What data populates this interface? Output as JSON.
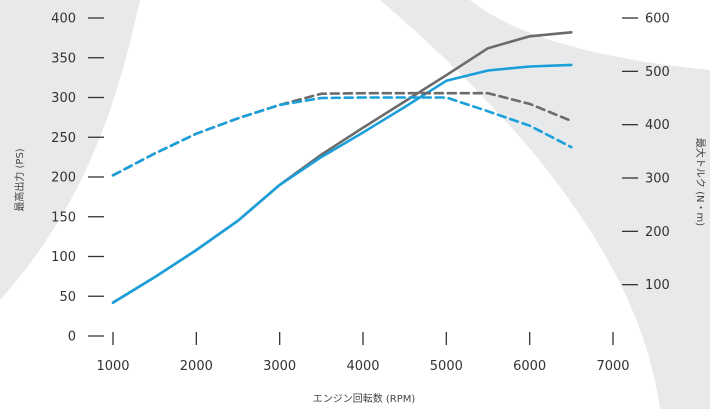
{
  "chart_data": {
    "type": "line",
    "xlabel": "エンジン回転数 (RPM)",
    "ylabel": "最高出力 (PS)",
    "y2label": "最大トルク (N・m)",
    "xticks": [
      1000,
      2000,
      3000,
      4000,
      5000,
      6000,
      7000
    ],
    "yticks": [
      0,
      50,
      100,
      150,
      200,
      250,
      300,
      350,
      400
    ],
    "y2ticks": [
      100,
      200,
      300,
      400,
      500,
      600
    ],
    "xlim": [
      750,
      7300
    ],
    "ylim": [
      0,
      415
    ],
    "y2lim": [
      0,
      620
    ],
    "grid": false,
    "legend": "none",
    "series": [
      {
        "axis": "left",
        "style": "solid",
        "color": "#6b6b6b",
        "x": [
          1000,
          1500,
          2000,
          2500,
          3000,
          3500,
          4000,
          4500,
          5000,
          5500,
          6000,
          6500
        ],
        "values": [
          42,
          74,
          108,
          145,
          190,
          228,
          262,
          295,
          328,
          362,
          377,
          382
        ]
      },
      {
        "axis": "left",
        "style": "solid",
        "color": "#1a9fdb",
        "x": [
          1000,
          1500,
          2000,
          2500,
          3000,
          3500,
          4000,
          4500,
          5000,
          5500,
          6000,
          6500
        ],
        "values": [
          42,
          74,
          108,
          145,
          190,
          225,
          256,
          288,
          321,
          334,
          339,
          341
        ]
      },
      {
        "axis": "right",
        "style": "dashed",
        "color": "#6b6b6b",
        "x": [
          1000,
          1500,
          2000,
          2500,
          3000,
          3500,
          4000,
          4500,
          5000,
          5500,
          6000,
          6500
        ],
        "values": [
          305,
          346,
          383,
          412,
          437,
          458,
          459,
          459,
          459,
          459,
          439,
          407
        ]
      },
      {
        "axis": "right",
        "style": "dashed",
        "color": "#1a9fdb",
        "x": [
          1000,
          1500,
          2000,
          2500,
          3000,
          3500,
          4000,
          4500,
          5000,
          5500,
          6000,
          6500
        ],
        "values": [
          305,
          346,
          383,
          412,
          437,
          450,
          451,
          451,
          451,
          425,
          398,
          358
        ]
      }
    ],
    "colors": {
      "background_shape": "#e8e9eb",
      "axis": "#333333"
    }
  }
}
